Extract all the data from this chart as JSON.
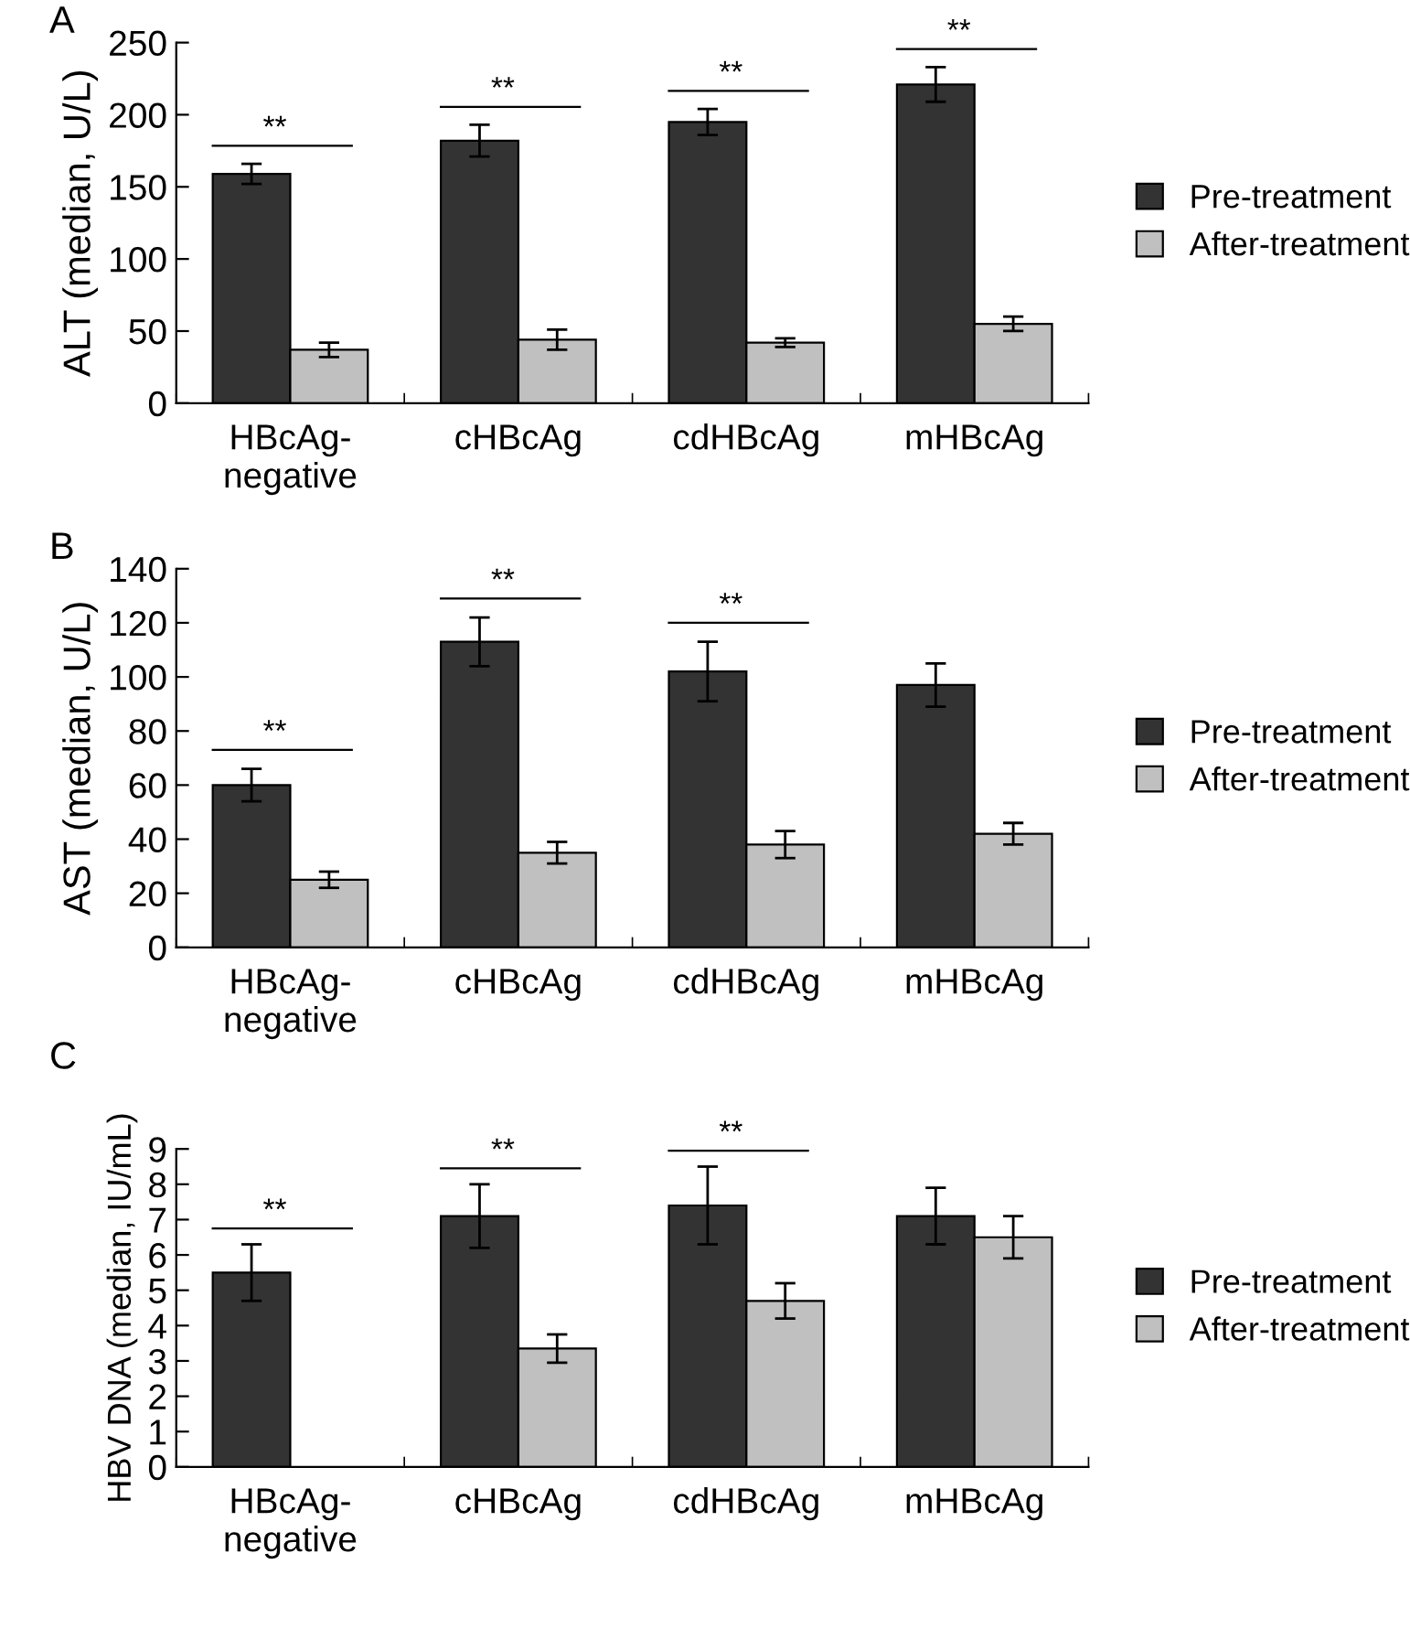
{
  "chart_data": [
    {
      "type": "bar",
      "ylabel": "ALT (median, U/L)",
      "categories": [
        "HBcAg-\nnegative",
        "cHBcAg",
        "cdHBcAg",
        "mHBcAg"
      ],
      "series": [
        {
          "name": "Pre-treatment",
          "color": "#333333",
          "values": [
            159,
            182,
            195,
            221
          ],
          "errors": [
            7,
            11,
            9,
            12
          ]
        },
        {
          "name": "After-treatment",
          "color": "#c0c0c0",
          "values": [
            37,
            44,
            42,
            55
          ],
          "errors": [
            5,
            7,
            3,
            5
          ]
        }
      ],
      "ylim": [
        0,
        250
      ],
      "yticks": [
        0,
        50,
        100,
        150,
        200,
        250
      ],
      "legend": "right",
      "grid": false,
      "annotations": [
        "A",
        "**",
        "**",
        "**",
        "**"
      ]
    },
    {
      "type": "bar",
      "ylabel": "AST (median, U/L)",
      "categories": [
        "HBcAg-\nnegative",
        "cHBcAg",
        "cdHBcAg",
        "mHBcAg"
      ],
      "series": [
        {
          "name": "Pre-treatment",
          "color": "#333333",
          "values": [
            60,
            113,
            102,
            97
          ],
          "errors": [
            6,
            9,
            11,
            8
          ]
        },
        {
          "name": "After-treatment",
          "color": "#c0c0c0",
          "values": [
            25,
            35,
            38,
            42
          ],
          "errors": [
            3,
            4,
            5,
            4
          ]
        }
      ],
      "ylim": [
        0,
        140
      ],
      "yticks": [
        0,
        20,
        40,
        60,
        80,
        100,
        120,
        140
      ],
      "legend": "right",
      "grid": false,
      "annotations": [
        "B",
        "**",
        "**",
        "**"
      ]
    },
    {
      "type": "bar",
      "ylabel": "HBV DNA (median, IU/mL)",
      "categories": [
        "HBcAg-\nnegative",
        "cHBcAg",
        "cdHBcAg",
        "mHBcAg"
      ],
      "series": [
        {
          "name": "Pre-treatment",
          "color": "#333333",
          "values": [
            5.5,
            7.1,
            7.4,
            7.1
          ],
          "errors": [
            0.8,
            0.9,
            1.1,
            0.8
          ]
        },
        {
          "name": "After-treatment",
          "color": "#c0c0c0",
          "values": [
            null,
            3.35,
            4.7,
            6.5
          ],
          "errors": [
            null,
            0.4,
            0.5,
            0.6
          ]
        }
      ],
      "ylim": [
        0,
        9
      ],
      "yticks": [
        0,
        1,
        2,
        3,
        4,
        5,
        6,
        7,
        8,
        9
      ],
      "legend": "right",
      "grid": false,
      "annotations": [
        "C",
        "**",
        "**",
        "**"
      ]
    }
  ]
}
